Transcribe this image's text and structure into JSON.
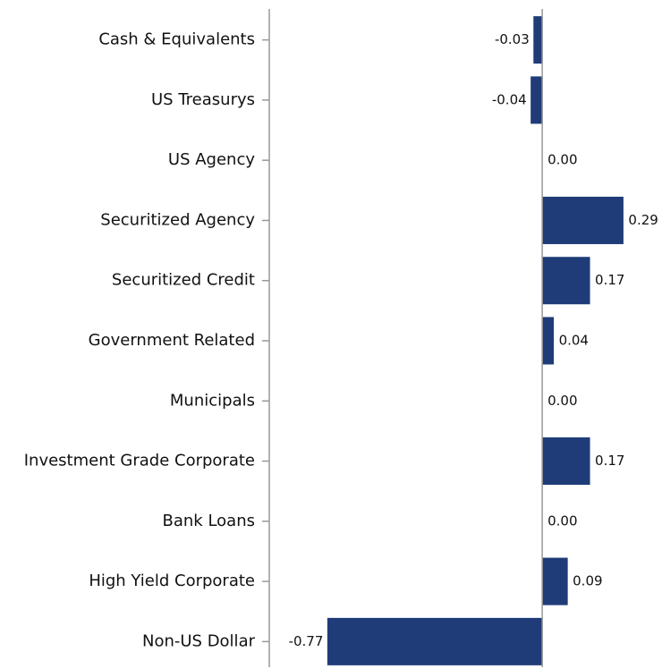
{
  "chart_data": {
    "type": "hbar",
    "categories": [
      "Cash & Equivalents",
      "US Treasurys",
      "US Agency",
      "Securitized Agency",
      "Securitized Credit",
      "Government Related",
      "Municipals",
      "Investment Grade Corporate",
      "Bank Loans",
      "High Yield Corporate",
      "Non-US Dollar"
    ],
    "values": [
      -0.03,
      -0.04,
      0,
      0.29,
      0.17,
      0.04,
      0,
      0.17,
      0,
      0.09,
      -0.77
    ],
    "value_labels": [
      "-0.03",
      "-0.04",
      "0.00",
      "0.29",
      "0.17",
      "0.04",
      "0.00",
      "0.17",
      "0.00",
      "0.09",
      "-0.77"
    ],
    "color": "#1f3c78",
    "xlim": [
      -0.98,
      0.43
    ]
  }
}
